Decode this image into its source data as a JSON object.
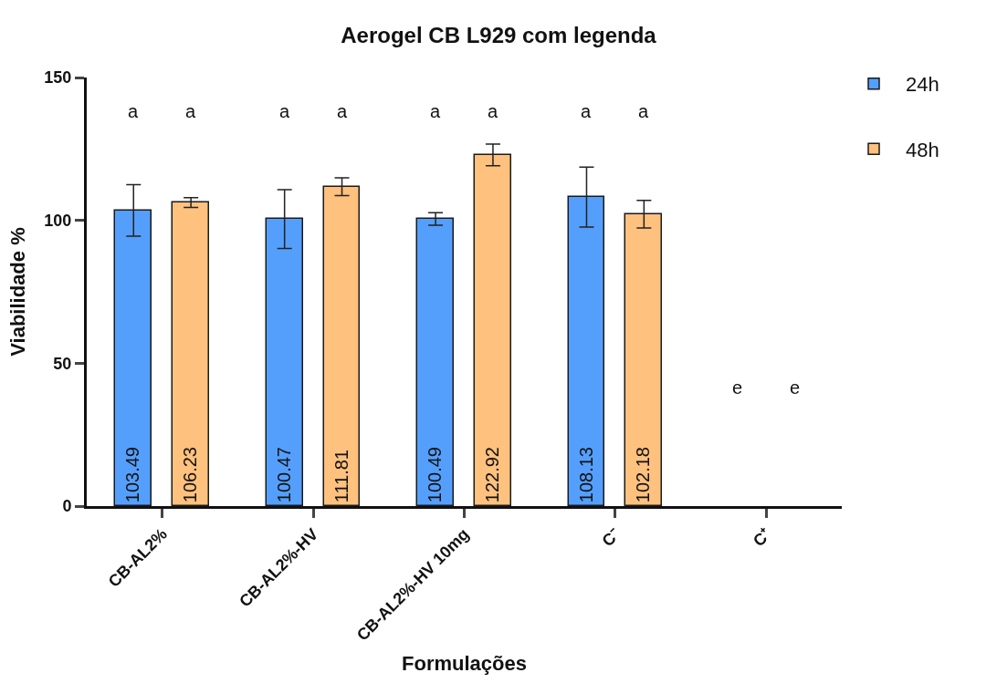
{
  "chart_data": {
    "type": "bar",
    "title": "Aerogel CB L929 com legenda",
    "xlabel": "Formulações",
    "ylabel": "Viabilidade %",
    "categories": [
      "CB-AL2%",
      "CB-AL2%-HV",
      "CB-AL2%-HV 10mg",
      "C⁻",
      "C⁺"
    ],
    "series": [
      {
        "name": "24h",
        "color": "#559ffc",
        "values": [
          103.49,
          100.47,
          100.49,
          108.13,
          null
        ],
        "errors": [
          9,
          10.3,
          2.2,
          10.5,
          null
        ]
      },
      {
        "name": "48h",
        "color": "#fec17e",
        "values": [
          106.23,
          111.81,
          122.92,
          102.18,
          null
        ],
        "errors": [
          1.7,
          3.1,
          3.8,
          4.8,
          null
        ]
      }
    ],
    "ylim": [
      0,
      150
    ],
    "yticks": [
      0,
      50,
      100,
      150
    ],
    "legend": "top right",
    "data_labels": true,
    "annotations": [
      "a",
      "a",
      "a",
      "a",
      "a",
      "a",
      "a",
      "a",
      "e",
      "e"
    ]
  }
}
